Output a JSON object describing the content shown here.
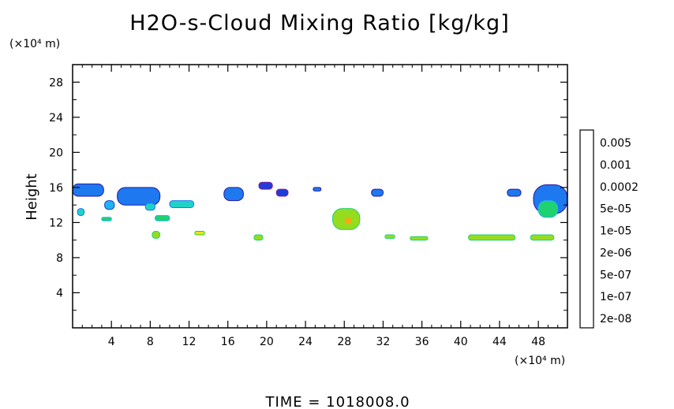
{
  "chart_data": {
    "type": "heatmap",
    "title": "H2O-s-Cloud Mixing Ratio [kg/kg]",
    "ylabel": "Height",
    "xunit": "(×10⁴ m)",
    "yunit": "(×10⁴ m)",
    "footer": "TIME  =  1018008.0",
    "xlim": [
      0,
      51
    ],
    "ylim": [
      0,
      30
    ],
    "xticks": [
      "4",
      "8",
      "12",
      "16",
      "20",
      "24",
      "28",
      "32",
      "36",
      "40",
      "44",
      "48"
    ],
    "yticks": [
      "4",
      "8",
      "12",
      "16",
      "20",
      "24",
      "28"
    ],
    "grid": false,
    "colorbar": {
      "labels": [
        "0.005",
        "0.001",
        "0.0002",
        "5e-05",
        "1e-05",
        "2e-06",
        "5e-07",
        "1e-07",
        "2e-08"
      ],
      "colors": [
        "#8b1a9a",
        "#2a1aa0",
        "#1e3cd8",
        "#1e78f0",
        "#1eb4f0",
        "#1ed2c8",
        "#1ed270",
        "#28d21e",
        "#96dc1e",
        "#e6e61e",
        "#f5aa14",
        "#f56414",
        "#e61e1e",
        "#f06e6e",
        "#f8b4b4"
      ]
    },
    "cloud_regions": [
      {
        "x0": 0.0,
        "x1": 3.2,
        "y0": 15.0,
        "y1": 16.4,
        "level": 3
      },
      {
        "x0": 0.5,
        "x1": 1.2,
        "y0": 12.8,
        "y1": 13.6,
        "level": 5
      },
      {
        "x0": 3.3,
        "x1": 4.3,
        "y0": 13.5,
        "y1": 14.5,
        "level": 4
      },
      {
        "x0": 3.0,
        "x1": 4.0,
        "y0": 12.2,
        "y1": 12.6,
        "level": 6
      },
      {
        "x0": 4.6,
        "x1": 9.0,
        "y0": 14.0,
        "y1": 16.0,
        "level": 3
      },
      {
        "x0": 7.5,
        "x1": 8.5,
        "y0": 13.4,
        "y1": 14.2,
        "level": 5
      },
      {
        "x0": 10.0,
        "x1": 12.5,
        "y0": 13.7,
        "y1": 14.5,
        "level": 5
      },
      {
        "x0": 8.5,
        "x1": 10.0,
        "y0": 12.2,
        "y1": 12.8,
        "level": 6
      },
      {
        "x0": 8.2,
        "x1": 9.0,
        "y0": 10.2,
        "y1": 11.0,
        "level": 8
      },
      {
        "x0": 12.6,
        "x1": 13.6,
        "y0": 10.6,
        "y1": 11.0,
        "level": 9
      },
      {
        "x0": 15.6,
        "x1": 17.6,
        "y0": 14.5,
        "y1": 16.0,
        "level": 3
      },
      {
        "x0": 19.2,
        "x1": 20.6,
        "y0": 15.8,
        "y1": 16.6,
        "level": 2
      },
      {
        "x0": 21.0,
        "x1": 22.2,
        "y0": 15.0,
        "y1": 15.8,
        "level": 2
      },
      {
        "x0": 24.8,
        "x1": 25.6,
        "y0": 15.6,
        "y1": 16.0,
        "level": 3
      },
      {
        "x0": 18.7,
        "x1": 19.6,
        "y0": 10.0,
        "y1": 10.6,
        "level": 8
      },
      {
        "x0": 26.8,
        "x1": 29.6,
        "y0": 11.2,
        "y1": 13.6,
        "level": 8
      },
      {
        "x0": 28.0,
        "x1": 28.8,
        "y0": 11.8,
        "y1": 12.6,
        "level": 10
      },
      {
        "x0": 30.8,
        "x1": 32.0,
        "y0": 15.0,
        "y1": 15.8,
        "level": 3
      },
      {
        "x0": 32.2,
        "x1": 33.2,
        "y0": 10.2,
        "y1": 10.6,
        "level": 8
      },
      {
        "x0": 34.8,
        "x1": 36.6,
        "y0": 10.0,
        "y1": 10.4,
        "level": 8
      },
      {
        "x0": 40.8,
        "x1": 45.6,
        "y0": 10.0,
        "y1": 10.6,
        "level": 8
      },
      {
        "x0": 44.8,
        "x1": 46.2,
        "y0": 15.0,
        "y1": 15.8,
        "level": 3
      },
      {
        "x0": 47.2,
        "x1": 49.6,
        "y0": 10.0,
        "y1": 10.6,
        "level": 8
      },
      {
        "x0": 47.5,
        "x1": 51.0,
        "y0": 13.0,
        "y1": 16.3,
        "level": 3
      },
      {
        "x0": 48.0,
        "x1": 50.0,
        "y0": 12.6,
        "y1": 14.5,
        "level": 6
      }
    ]
  }
}
